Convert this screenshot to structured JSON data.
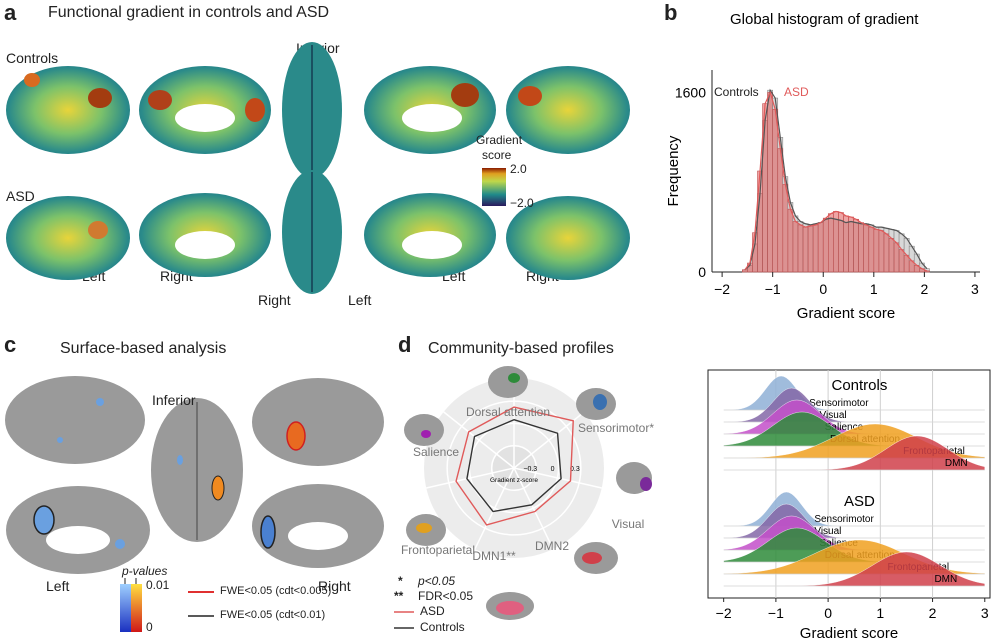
{
  "panel_a": {
    "letter": "a",
    "title": "Functional gradient in controls and ASD",
    "row_controls": "Controls",
    "row_asd": "ASD",
    "view_inferior": "Inferior",
    "view_left_1": "Left",
    "view_right_1": "Right",
    "view_right_2": "Right",
    "view_left_2": "Left",
    "view_left_3": "Left",
    "view_right_3": "Right",
    "colorbar_title_1": "Gradient",
    "colorbar_title_2": "score",
    "colorbar_max": "2.0",
    "colorbar_min": "−2.0"
  },
  "panel_b": {
    "letter": "b",
    "chart_data": {
      "type": "bar",
      "title": "Global histogram of gradient",
      "xlabel": "Gradient score",
      "ylabel": "Frequency",
      "xlim": [
        -2.2,
        3.1
      ],
      "ylim": [
        0,
        1800
      ],
      "xticks": [
        "−2",
        "−1",
        "0",
        "1",
        "2",
        "3"
      ],
      "yticks": [
        "0",
        "1600"
      ],
      "legend": [
        {
          "name": "Controls",
          "color": "#333333"
        },
        {
          "name": "ASD",
          "color": "#e05a5a"
        }
      ],
      "bins": [
        -1.6,
        -1.5,
        -1.4,
        -1.3,
        -1.2,
        -1.1,
        -1.0,
        -0.9,
        -0.8,
        -0.7,
        -0.6,
        -0.5,
        -0.4,
        -0.3,
        -0.2,
        -0.1,
        0.0,
        0.1,
        0.2,
        0.3,
        0.4,
        0.5,
        0.6,
        0.7,
        0.8,
        0.9,
        1.0,
        1.1,
        1.2,
        1.3,
        1.4,
        1.5,
        1.6,
        1.7,
        1.8,
        1.9,
        2.0
      ],
      "series": [
        {
          "name": "Controls",
          "values": [
            20,
            60,
            250,
            700,
            1350,
            1620,
            1550,
            1200,
            850,
            620,
            500,
            450,
            430,
            420,
            430,
            440,
            470,
            480,
            470,
            460,
            440,
            450,
            440,
            430,
            430,
            420,
            400,
            400,
            390,
            380,
            370,
            340,
            300,
            230,
            160,
            80,
            30
          ]
        },
        {
          "name": "ASD",
          "values": [
            20,
            80,
            350,
            900,
            1500,
            1600,
            1450,
            1100,
            780,
            560,
            450,
            420,
            400,
            410,
            420,
            440,
            480,
            520,
            540,
            530,
            500,
            490,
            470,
            440,
            420,
            400,
            380,
            370,
            340,
            300,
            260,
            200,
            150,
            100,
            60,
            30,
            10
          ]
        }
      ]
    }
  },
  "panel_c": {
    "letter": "c",
    "title": "Surface-based analysis",
    "view_inferior": "Inferior",
    "view_left": "Left",
    "view_right": "Right",
    "pvalues_label": "p-values",
    "pvalues_max": "0.01",
    "pvalues_min": "0",
    "legend_red": "FWE<0.05 (cdt<0.005)",
    "legend_black": "FWE<0.05 (cdt<0.01)"
  },
  "panel_d": {
    "letter": "d",
    "title": "Community-based profiles",
    "chart_data": {
      "type": "radar",
      "axes": [
        "Dorsal attention",
        "Sensorimotor*",
        "Visual",
        "DMN2",
        "DMN1**",
        "Frontoparietal",
        "Salience"
      ],
      "ticks": [
        "−0.3",
        "0",
        "0.3"
      ],
      "tick_values": [
        -0.3,
        0,
        0.3
      ],
      "rlim": [
        -0.6,
        0.45
      ],
      "center_label": "Gradient z-score",
      "series": [
        {
          "name": "ASD",
          "color": "#e05a5a",
          "values": [
            0.22,
            0.42,
            0.18,
            0.05,
            0.25,
            0.2,
            0.18
          ]
        },
        {
          "name": "Controls",
          "color": "#333333",
          "values": [
            0.05,
            0.15,
            0.05,
            -0.05,
            0.05,
            0.05,
            0.08
          ]
        }
      ]
    },
    "sig_star": "*",
    "sig_star_text": "p<0.05",
    "sig_dstar": "**",
    "sig_dstar_text": "FDR<0.05",
    "legend_asd": "ASD",
    "legend_controls": "Controls"
  },
  "panel_ridge": {
    "chart_data": {
      "type": "ridgeline",
      "xlabel": "Gradient score",
      "xlim": [
        -2.3,
        3.1
      ],
      "xticks": [
        "−2",
        "−1",
        "0",
        "1",
        "2",
        "3"
      ],
      "groups": [
        {
          "name": "Controls",
          "rows": [
            {
              "name": "Sensorimotor",
              "color": "#8fb0d6",
              "peak": -0.9,
              "width": 0.3
            },
            {
              "name": "Visual",
              "color": "#8467a7",
              "peak": -0.7,
              "width": 0.35
            },
            {
              "name": "Salience",
              "color": "#c34fc9",
              "peak": -0.6,
              "width": 0.45
            },
            {
              "name": "Dorsal attention",
              "color": "#2e8b3a",
              "peak": -0.5,
              "width": 0.55
            },
            {
              "name": "Frontoparietal",
              "color": "#f0a020",
              "peak": 0.9,
              "width": 0.8
            },
            {
              "name": "DMN",
              "color": "#d0404a",
              "peak": 1.7,
              "width": 0.6
            }
          ]
        },
        {
          "name": "ASD",
          "rows": [
            {
              "name": "Sensorimotor",
              "color": "#8fb0d6",
              "peak": -0.8,
              "width": 0.3
            },
            {
              "name": "Visual",
              "color": "#8467a7",
              "peak": -0.8,
              "width": 0.35
            },
            {
              "name": "Salience",
              "color": "#c34fc9",
              "peak": -0.7,
              "width": 0.45
            },
            {
              "name": "Dorsal attention",
              "color": "#2e8b3a",
              "peak": -0.6,
              "width": 0.55
            },
            {
              "name": "Frontoparietal",
              "color": "#f0a020",
              "peak": 0.6,
              "width": 0.85
            },
            {
              "name": "DMN",
              "color": "#d0404a",
              "peak": 1.5,
              "width": 0.65
            }
          ]
        }
      ]
    }
  },
  "colors": {
    "gray_brain": "#9a9a9a",
    "gradient_low": "#2a1a5e",
    "gradient_mid": "#1f8a8a",
    "gradient_high": "#d94f00"
  }
}
